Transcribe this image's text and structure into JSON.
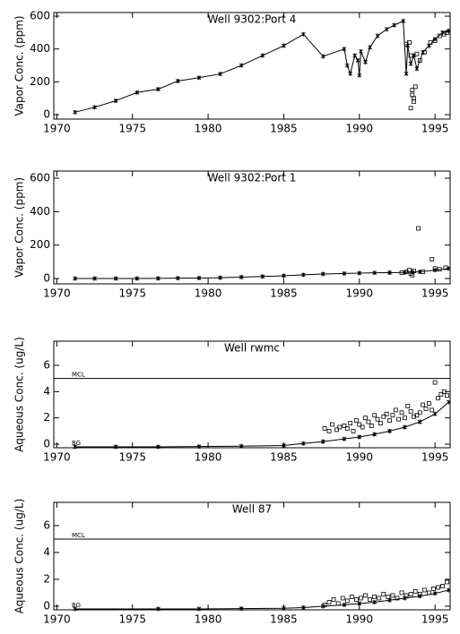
{
  "chart_data": [
    {
      "type": "line",
      "title": "Well 9302:Port 4",
      "y_label": "Vapor Conc. (ppm)",
      "xlim": [
        1969.8,
        1996
      ],
      "ylim": [
        -27,
        622
      ],
      "xticks": [
        1970,
        1975,
        1980,
        1985,
        1990,
        1995
      ],
      "yticks": [
        0,
        200,
        400,
        600
      ],
      "series": [
        {
          "style": "line",
          "color": "#000000",
          "x": [
            1971.2,
            1972.5,
            1973.9,
            1975.3,
            1976.7,
            1978,
            1979.4,
            1980.8,
            1982.2,
            1983.6,
            1985,
            1986.3,
            1987.6,
            1989,
            1989.2,
            1989.4,
            1989.7,
            1989.9,
            1990,
            1990.1,
            1990.4,
            1990.7,
            1991.2,
            1991.8,
            1992.3,
            1992.9,
            1993.1,
            1993.2,
            1993.4,
            1993.6,
            1993.8,
            1994.2,
            1994.6,
            1995,
            1995.5,
            1995.9
          ],
          "values": [
            15,
            45,
            85,
            135,
            155,
            205,
            225,
            248,
            300,
            360,
            420,
            490,
            355,
            400,
            300,
            250,
            360,
            330,
            240,
            385,
            320,
            410,
            480,
            520,
            545,
            570,
            250,
            420,
            310,
            360,
            280,
            380,
            420,
            460,
            500,
            510
          ]
        },
        {
          "style": "points",
          "color": "#000000",
          "x": [
            1993.1,
            1993.3,
            1993.4,
            1993.5,
            1993.5,
            1993.6,
            1993.4,
            1993.7,
            1993.6,
            1993.8,
            1994,
            1994.3,
            1994.7,
            1995,
            1995.3,
            1995.6,
            1995.8
          ],
          "values": [
            430,
            440,
            360,
            150,
            120,
            100,
            40,
            170,
            80,
            370,
            330,
            380,
            440,
            450,
            480,
            490,
            500
          ]
        }
      ]
    },
    {
      "type": "line",
      "title": "Well 9302:Port 1",
      "y_label": "Vapor Conc. (ppm)",
      "xlim": [
        1969.8,
        1996
      ],
      "ylim": [
        -32,
        643
      ],
      "xticks": [
        1970,
        1975,
        1980,
        1985,
        1990,
        1995
      ],
      "yticks": [
        0,
        200,
        400,
        600
      ],
      "series": [
        {
          "style": "line",
          "color": "#000000",
          "x": [
            1971.2,
            1972.5,
            1973.9,
            1975.3,
            1976.7,
            1978,
            1979.4,
            1980.8,
            1982.2,
            1983.6,
            1985,
            1986.3,
            1987.6,
            1989,
            1990,
            1991,
            1992,
            1993,
            1993.5,
            1994,
            1995,
            1995.9
          ],
          "values": [
            0,
            0,
            0,
            0,
            1,
            2,
            3,
            5,
            8,
            12,
            16,
            22,
            27,
            30,
            32,
            34,
            35,
            36,
            38,
            40,
            50,
            60
          ]
        },
        {
          "style": "points",
          "color": "#000000",
          "x": [
            1992.8,
            1993.1,
            1993.3,
            1993.5,
            1993.6,
            1993.9,
            1994.2,
            1994.8,
            1995,
            1995.3,
            1995.7,
            1993.4
          ],
          "values": [
            35,
            40,
            50,
            20,
            45,
            300,
            40,
            115,
            60,
            55,
            65,
            30
          ]
        }
      ]
    },
    {
      "type": "line",
      "title": "Well rwmc",
      "y_label": "Aqueous Conc. (ug/L)",
      "xlim": [
        1969.8,
        1996
      ],
      "ylim": [
        -0.27,
        7.84
      ],
      "xticks": [
        1970,
        1975,
        1980,
        1985,
        1990,
        1995
      ],
      "yticks": [
        0,
        2,
        4,
        6
      ],
      "reference_lines": [
        {
          "label": "MCL",
          "value": 5,
          "line": true
        },
        {
          "label": "BG",
          "value": 0,
          "line": false
        }
      ],
      "series": [
        {
          "style": "line",
          "color": "#000000",
          "x": [
            1971.2,
            1973.9,
            1976.7,
            1979.4,
            1982.2,
            1985,
            1986.3,
            1987.6,
            1989,
            1990,
            1991,
            1992,
            1993,
            1994,
            1995,
            1995.9
          ],
          "values": [
            -0.2,
            -0.2,
            -0.2,
            -0.18,
            -0.15,
            -0.1,
            0.05,
            0.2,
            0.4,
            0.55,
            0.75,
            1,
            1.3,
            1.7,
            2.3,
            3.2
          ]
        },
        {
          "style": "points",
          "color": "#000000",
          "x": [
            1987.7,
            1988,
            1988.2,
            1988.5,
            1988.7,
            1989,
            1989.2,
            1989.4,
            1989.6,
            1989.8,
            1990,
            1990.2,
            1990.4,
            1990.6,
            1990.8,
            1991,
            1991.2,
            1991.4,
            1991.6,
            1991.8,
            1992,
            1992.2,
            1992.4,
            1992.6,
            1992.8,
            1993,
            1993.2,
            1993.4,
            1993.6,
            1993.8,
            1994,
            1994.2,
            1994.4,
            1994.6,
            1994.8,
            1995,
            1995.2,
            1995.4,
            1995.6,
            1995.8
          ],
          "values": [
            1.2,
            1.0,
            1.5,
            1.1,
            1.3,
            1.4,
            1.2,
            1.6,
            1.0,
            1.8,
            1.5,
            1.3,
            2.0,
            1.7,
            1.4,
            2.2,
            1.9,
            1.6,
            2.1,
            2.3,
            1.8,
            2.2,
            2.6,
            1.9,
            2.4,
            2.0,
            2.9,
            2.5,
            2.1,
            2.2,
            2.4,
            3.0,
            2.7,
            3.1,
            2.6,
            4.7,
            3.5,
            3.8,
            4.0,
            3.7
          ]
        }
      ]
    },
    {
      "type": "line",
      "title": "Well 87",
      "y_label": "Aqueous Conc. (ug/L)",
      "xlim": [
        1969.8,
        1996
      ],
      "ylim": [
        -0.27,
        7.73
      ],
      "xticks": [
        1970,
        1975,
        1980,
        1985,
        1990,
        1995
      ],
      "yticks": [
        0,
        2,
        4,
        6
      ],
      "reference_lines": [
        {
          "label": "MCL",
          "value": 5,
          "line": true
        },
        {
          "label": "BG",
          "value": 0,
          "line": false
        }
      ],
      "series": [
        {
          "style": "line",
          "color": "#000000",
          "x": [
            1971.2,
            1976.7,
            1979.4,
            1982.2,
            1985,
            1986.3,
            1987.6,
            1989,
            1990,
            1991,
            1992,
            1993,
            1994,
            1995,
            1995.9
          ],
          "values": [
            -0.2,
            -0.2,
            -0.2,
            -0.18,
            -0.15,
            -0.1,
            0,
            0.1,
            0.2,
            0.3,
            0.45,
            0.6,
            0.75,
            0.95,
            1.2
          ]
        },
        {
          "style": "points",
          "color": "#000000",
          "x": [
            1987.7,
            1988,
            1988.3,
            1988.6,
            1988.9,
            1989.2,
            1989.5,
            1989.8,
            1990.1,
            1990.4,
            1990.7,
            1991,
            1991.3,
            1991.6,
            1991.9,
            1992.2,
            1992.5,
            1992.8,
            1993.1,
            1993.4,
            1993.7,
            1994,
            1994.3,
            1994.6,
            1994.9,
            1995.2,
            1995.5,
            1995.8
          ],
          "values": [
            0.1,
            0.3,
            0.5,
            0.2,
            0.6,
            0.4,
            0.7,
            0.5,
            0.6,
            0.8,
            0.5,
            0.7,
            0.6,
            0.9,
            0.7,
            0.8,
            0.6,
            1.0,
            0.8,
            0.9,
            1.1,
            0.9,
            1.2,
            1.0,
            1.3,
            1.4,
            1.5,
            1.8
          ]
        }
      ]
    }
  ]
}
